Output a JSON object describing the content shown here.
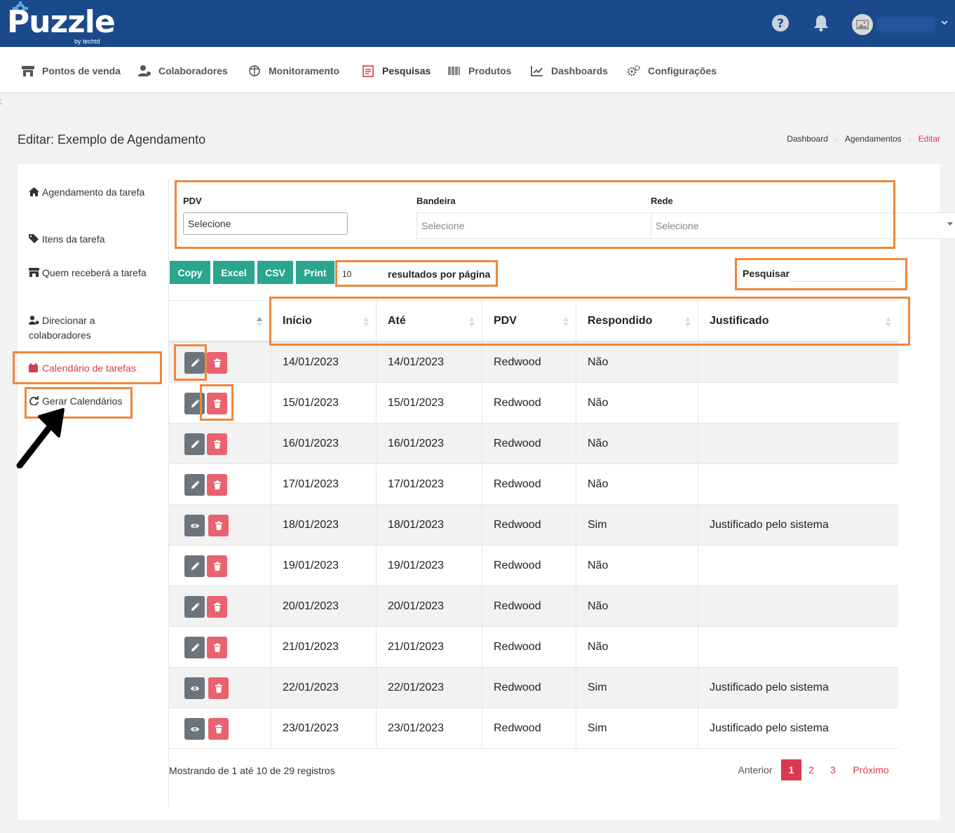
{
  "header": {
    "logo_text": "Puzzle",
    "logo_sub": "by techtd",
    "icons": [
      "help-icon",
      "bell-icon",
      "avatar",
      "chevron-down-icon"
    ]
  },
  "nav": {
    "items": [
      {
        "label": "Pontos de venda",
        "icon": "store-icon"
      },
      {
        "label": "Colaboradores",
        "icon": "users-icon"
      },
      {
        "label": "Monitoramento",
        "icon": "globe-icon"
      },
      {
        "label": "Pesquisas",
        "icon": "survey-icon"
      },
      {
        "label": "Produtos",
        "icon": "barcode-icon"
      },
      {
        "label": "Dashboards",
        "icon": "chart-icon"
      },
      {
        "label": "Configurações",
        "icon": "gears-icon"
      }
    ]
  },
  "stray_char": ";",
  "page": {
    "title": "Editar: Exemplo de Agendamento",
    "breadcrumb": [
      "Dashboard",
      "Agendamentos",
      "Editar"
    ]
  },
  "sidebar": {
    "items": [
      {
        "label": "Agendamento da tarefa",
        "icon": "home-icon"
      },
      {
        "label": "Itens da tarefa",
        "icon": "tag-icon"
      },
      {
        "label": "Quem receberá a tarefa",
        "icon": "store-icon"
      },
      {
        "label": "Direcionar a colaboradores",
        "icon": "user-cog-icon"
      },
      {
        "label": "Calendário de tarefas",
        "icon": "calendar-icon"
      },
      {
        "label": "Gerar Calendários",
        "icon": "refresh-icon"
      }
    ]
  },
  "filters": {
    "pdv_label": "PDV",
    "pdv_value": "Selecione",
    "bandeira_label": "Bandeira",
    "bandeira_placeholder": "Selecione",
    "rede_label": "Rede",
    "rede_placeholder": "Selecione"
  },
  "toolbar": {
    "copy": "Copy",
    "excel": "Excel",
    "csv": "CSV",
    "print": "Print",
    "length_value": "10",
    "length_text": "resultados por página",
    "search_label": "Pesquisar"
  },
  "table": {
    "columns": [
      "Início",
      "Até",
      "PDV",
      "Respondido",
      "Justificado"
    ],
    "rows": [
      {
        "action": "edit",
        "inicio": "14/01/2023",
        "ate": "14/01/2023",
        "pdv": "Redwood",
        "respondido": "Não",
        "justificado": ""
      },
      {
        "action": "edit",
        "inicio": "15/01/2023",
        "ate": "15/01/2023",
        "pdv": "Redwood",
        "respondido": "Não",
        "justificado": ""
      },
      {
        "action": "edit",
        "inicio": "16/01/2023",
        "ate": "16/01/2023",
        "pdv": "Redwood",
        "respondido": "Não",
        "justificado": ""
      },
      {
        "action": "edit",
        "inicio": "17/01/2023",
        "ate": "17/01/2023",
        "pdv": "Redwood",
        "respondido": "Não",
        "justificado": ""
      },
      {
        "action": "view",
        "inicio": "18/01/2023",
        "ate": "18/01/2023",
        "pdv": "Redwood",
        "respondido": "Sim",
        "justificado": "Justificado pelo sistema"
      },
      {
        "action": "edit",
        "inicio": "19/01/2023",
        "ate": "19/01/2023",
        "pdv": "Redwood",
        "respondido": "Não",
        "justificado": ""
      },
      {
        "action": "edit",
        "inicio": "20/01/2023",
        "ate": "20/01/2023",
        "pdv": "Redwood",
        "respondido": "Não",
        "justificado": ""
      },
      {
        "action": "edit",
        "inicio": "21/01/2023",
        "ate": "21/01/2023",
        "pdv": "Redwood",
        "respondido": "Não",
        "justificado": ""
      },
      {
        "action": "view",
        "inicio": "22/01/2023",
        "ate": "22/01/2023",
        "pdv": "Redwood",
        "respondido": "Sim",
        "justificado": "Justificado pelo sistema"
      },
      {
        "action": "view",
        "inicio": "23/01/2023",
        "ate": "23/01/2023",
        "pdv": "Redwood",
        "respondido": "Sim",
        "justificado": "Justificado pelo sistema"
      }
    ]
  },
  "footer": {
    "info": "Mostrando de 1 até 10 de 29 registros",
    "prev": "Anterior",
    "pages": [
      "1",
      "2",
      "3"
    ],
    "next": "Próximo"
  },
  "colors": {
    "header_bg": "#1b4a8c",
    "accent_red": "#d9394e",
    "button_teal": "#2ba58e",
    "highlight_orange": "#f0863a"
  }
}
